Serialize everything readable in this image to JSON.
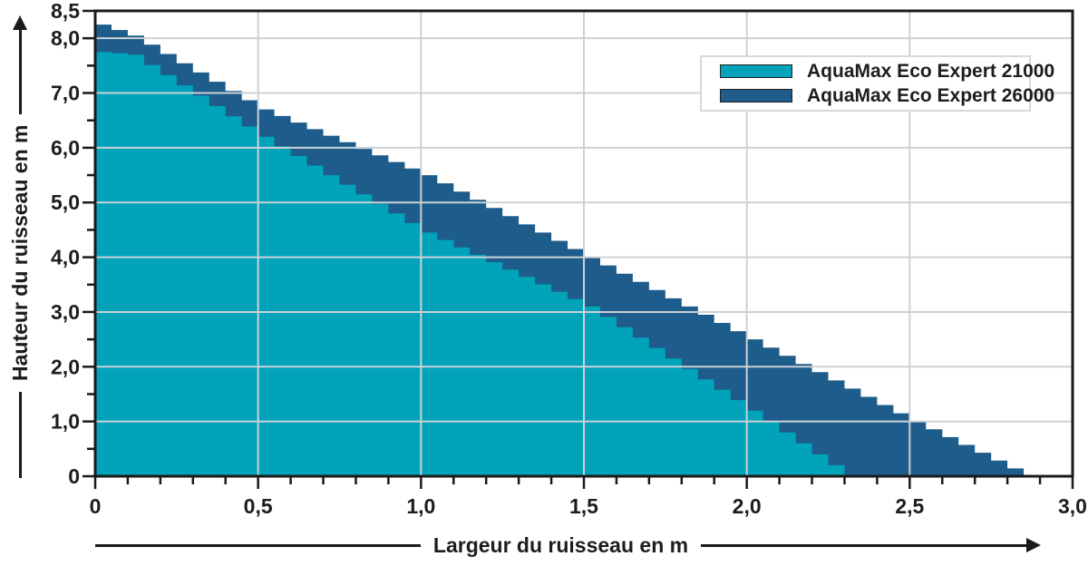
{
  "chart_data": {
    "type": "area",
    "variant": "stepped-performance-curves",
    "title": "",
    "xlabel": "Largeur du ruisseau en m",
    "ylabel": "Hauteur du ruisseau en m",
    "xlim": [
      0,
      3.0
    ],
    "ylim": [
      0,
      8.5
    ],
    "grid": {
      "horizontal_at": [
        1,
        2,
        3,
        4,
        5,
        6,
        7,
        8
      ],
      "vertical_at": [
        0.5,
        1.0,
        1.5,
        2.0,
        2.5
      ],
      "color": "#ccd1d5"
    },
    "x_tick_labels": [
      {
        "v": 0,
        "label": "0"
      },
      {
        "v": 0.5,
        "label": "0,5"
      },
      {
        "v": 1.0,
        "label": "1,0"
      },
      {
        "v": 1.5,
        "label": "1,5"
      },
      {
        "v": 2.0,
        "label": "2,0"
      },
      {
        "v": 2.5,
        "label": "2,5"
      },
      {
        "v": 3.0,
        "label": "3,0"
      }
    ],
    "y_tick_labels": [
      {
        "v": 8.5,
        "label": "8,5"
      },
      {
        "v": 8.0,
        "label": "8,0"
      },
      {
        "v": 7.0,
        "label": "7,0"
      },
      {
        "v": 6.0,
        "label": "6,0"
      },
      {
        "v": 5.0,
        "label": "5,0"
      },
      {
        "v": 4.0,
        "label": "4,0"
      },
      {
        "v": 3.0,
        "label": "3,0"
      },
      {
        "v": 2.0,
        "label": "2,0"
      },
      {
        "v": 1.0,
        "label": "1,0"
      },
      {
        "v": 0,
        "label": "0"
      }
    ],
    "x_minor_tick_step": 0.1,
    "y_minor_tick_step": 0.5,
    "step_width_m": 0.05,
    "series": [
      {
        "name": "AquaMax Eco Expert 21000",
        "color": "#00a3ba",
        "x_end": 2.3,
        "points": [
          [
            0,
            7.75
          ],
          [
            0.1,
            7.7
          ],
          [
            0.5,
            6.2
          ],
          [
            1.0,
            4.45
          ],
          [
            1.5,
            3.1
          ],
          [
            2.0,
            1.2
          ],
          [
            2.3,
            0
          ]
        ]
      },
      {
        "name": "AquaMax Eco Expert 26000",
        "color": "#1d5c8b",
        "x_end": 2.85,
        "points": [
          [
            0,
            8.25
          ],
          [
            0.1,
            8.05
          ],
          [
            0.5,
            6.7
          ],
          [
            1.0,
            5.5
          ],
          [
            1.5,
            4.0
          ],
          [
            2.0,
            2.5
          ],
          [
            2.5,
            1.0
          ],
          [
            2.85,
            0
          ]
        ]
      }
    ],
    "legend": {
      "position": "top-right",
      "entries": [
        {
          "label": "AquaMax Eco Expert 21000",
          "color": "#00a3ba"
        },
        {
          "label": "AquaMax Eco Expert 26000",
          "color": "#1d5c8b"
        }
      ]
    },
    "axis_color": "#1a1a1a",
    "text_color": "#1d1d1b"
  }
}
